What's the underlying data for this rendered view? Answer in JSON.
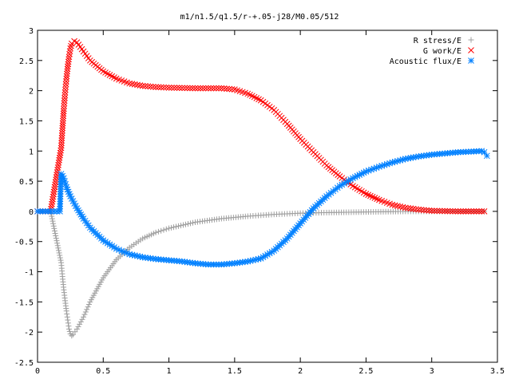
{
  "chart_data": {
    "type": "scatter",
    "title": "m1/n1.5/q1.5/r-+.05-j28/M0.05/512",
    "xlabel": "",
    "ylabel": "",
    "xlim": [
      0,
      3.5
    ],
    "ylim": [
      -2.5,
      3
    ],
    "x_ticks": [
      "0",
      "0.5",
      "1",
      "1.5",
      "2",
      "2.5",
      "3",
      "3.5"
    ],
    "y_ticks": [
      "3",
      "2.5",
      "2",
      "1.5",
      "1",
      "0.5",
      "0",
      "-0.5",
      "-1",
      "-1.5",
      "-2",
      "-2.5"
    ],
    "grid": false,
    "legend_position": "top-right",
    "series": [
      {
        "name": "R stress/E",
        "marker": "plus",
        "color": "#a0a0a0",
        "x": [
          0.0,
          0.1,
          0.18,
          0.19,
          0.2,
          0.21,
          0.22,
          0.23,
          0.24,
          0.25,
          0.26,
          0.27,
          0.3,
          0.35,
          0.4,
          0.5,
          0.6,
          0.7,
          0.8,
          0.9,
          1.0,
          1.2,
          1.4,
          1.6,
          1.8,
          2.0,
          2.2,
          2.5,
          2.8,
          3.0,
          3.2,
          3.4
        ],
        "y": [
          0.0,
          0.0,
          -0.85,
          -1.08,
          -1.3,
          -1.48,
          -1.65,
          -1.8,
          -1.95,
          -2.03,
          -2.06,
          -2.04,
          -1.95,
          -1.75,
          -1.5,
          -1.1,
          -0.8,
          -0.6,
          -0.45,
          -0.35,
          -0.28,
          -0.18,
          -0.12,
          -0.08,
          -0.05,
          -0.03,
          -0.02,
          -0.01,
          0.0,
          0.0,
          0.0,
          0.0
        ]
      },
      {
        "name": "G work/E",
        "marker": "cross",
        "color": "#ff0000",
        "x": [
          0.0,
          0.1,
          0.18,
          0.19,
          0.2,
          0.21,
          0.22,
          0.23,
          0.24,
          0.25,
          0.26,
          0.28,
          0.3,
          0.35,
          0.4,
          0.5,
          0.6,
          0.7,
          0.8,
          0.9,
          1.0,
          1.2,
          1.4,
          1.5,
          1.6,
          1.7,
          1.8,
          1.9,
          2.0,
          2.1,
          2.2,
          2.3,
          2.4,
          2.5,
          2.6,
          2.7,
          2.8,
          2.9,
          3.0,
          3.2,
          3.4
        ],
        "y": [
          0.0,
          0.0,
          1.05,
          1.38,
          1.7,
          1.97,
          2.2,
          2.4,
          2.56,
          2.7,
          2.78,
          2.82,
          2.8,
          2.65,
          2.5,
          2.32,
          2.2,
          2.12,
          2.08,
          2.06,
          2.05,
          2.04,
          2.04,
          2.02,
          1.95,
          1.84,
          1.68,
          1.45,
          1.2,
          0.98,
          0.76,
          0.58,
          0.42,
          0.29,
          0.19,
          0.11,
          0.06,
          0.03,
          0.01,
          0.0,
          0.0
        ]
      },
      {
        "name": "Acoustic flux/E",
        "marker": "star",
        "color": "#0080ff",
        "x": [
          0.0,
          0.1,
          0.17,
          0.18,
          0.2,
          0.22,
          0.25,
          0.3,
          0.35,
          0.4,
          0.5,
          0.6,
          0.7,
          0.8,
          0.9,
          1.0,
          1.1,
          1.2,
          1.3,
          1.4,
          1.5,
          1.6,
          1.7,
          1.8,
          1.9,
          2.0,
          2.1,
          2.2,
          2.3,
          2.4,
          2.5,
          2.6,
          2.7,
          2.8,
          2.9,
          3.0,
          3.1,
          3.2,
          3.3,
          3.38,
          3.4,
          3.42
        ],
        "y": [
          0.0,
          0.0,
          0.0,
          0.62,
          0.55,
          0.4,
          0.25,
          0.05,
          -0.12,
          -0.27,
          -0.48,
          -0.62,
          -0.71,
          -0.76,
          -0.79,
          -0.81,
          -0.83,
          -0.86,
          -0.88,
          -0.88,
          -0.86,
          -0.83,
          -0.78,
          -0.65,
          -0.45,
          -0.2,
          0.05,
          0.25,
          0.42,
          0.55,
          0.66,
          0.74,
          0.81,
          0.87,
          0.91,
          0.94,
          0.96,
          0.98,
          0.99,
          1.0,
          0.98,
          0.92
        ]
      }
    ]
  }
}
